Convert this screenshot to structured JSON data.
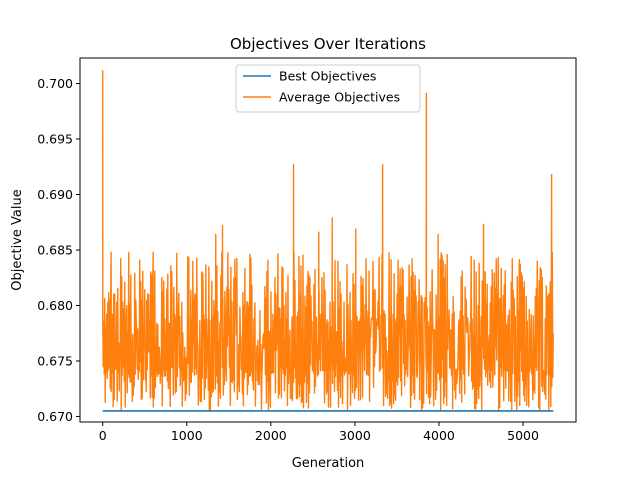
{
  "chart_data": {
    "type": "line",
    "title": "Objectives Over Iterations",
    "xlabel": "Generation",
    "ylabel": "Objective Value",
    "xlim": [
      -270,
      5630
    ],
    "ylim": [
      0.6695,
      0.7023
    ],
    "x_ticks": [
      0,
      1000,
      2000,
      3000,
      4000,
      5000
    ],
    "x_tick_labels": [
      "0",
      "1000",
      "2000",
      "3000",
      "4000",
      "5000"
    ],
    "y_ticks": [
      0.67,
      0.675,
      0.68,
      0.685,
      0.69,
      0.695,
      0.7
    ],
    "y_tick_labels": [
      "0.670",
      "0.675",
      "0.680",
      "0.685",
      "0.690",
      "0.695",
      "0.700"
    ],
    "grid": false,
    "legend_position": "top-center",
    "series": [
      {
        "name": "Best Objectives",
        "color": "#1f77b4",
        "x": [
          0,
          5360
        ],
        "values": [
          0.6705,
          0.6705
        ]
      },
      {
        "name": "Average Objectives",
        "color": "#ff7f0e",
        "x_start": 0,
        "x_end": 5360,
        "typical_range": [
          0.6735,
          0.6792
        ],
        "noise_floor": [
          0.6705,
          0.6745
        ],
        "noise_ceiling": [
          0.6785,
          0.6848
        ],
        "peaks": [
          {
            "x": 0,
            "y": 0.7012
          },
          {
            "x": 15,
            "y": 0.676
          },
          {
            "x": 100,
            "y": 0.6848
          },
          {
            "x": 600,
            "y": 0.6848
          },
          {
            "x": 1345,
            "y": 0.6864
          },
          {
            "x": 1425,
            "y": 0.6872
          },
          {
            "x": 2270,
            "y": 0.6927
          },
          {
            "x": 2570,
            "y": 0.6866
          },
          {
            "x": 2730,
            "y": 0.6879
          },
          {
            "x": 3010,
            "y": 0.6869
          },
          {
            "x": 3330,
            "y": 0.6927
          },
          {
            "x": 3850,
            "y": 0.6991
          },
          {
            "x": 3990,
            "y": 0.6864
          },
          {
            "x": 4530,
            "y": 0.6873
          },
          {
            "x": 5340,
            "y": 0.6918
          }
        ]
      }
    ]
  }
}
